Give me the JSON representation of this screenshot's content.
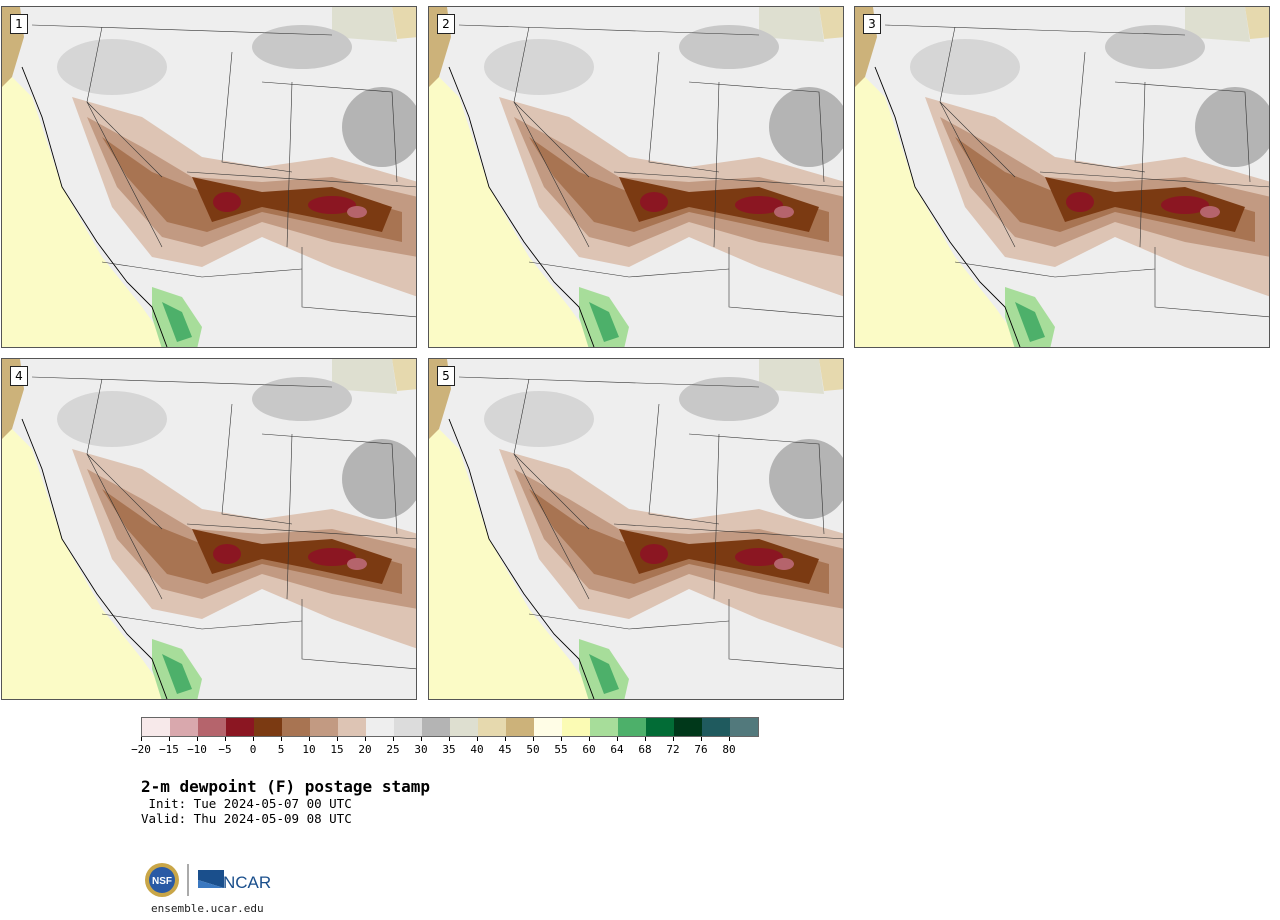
{
  "panels": [
    {
      "label": "1"
    },
    {
      "label": "2"
    },
    {
      "label": "3"
    },
    {
      "label": "4"
    },
    {
      "label": "5"
    }
  ],
  "colorbar": {
    "colors": [
      "#f7e9ea",
      "#d9a8ad",
      "#b5646c",
      "#8b1622",
      "#7b3a12",
      "#a87452",
      "#c29a82",
      "#ddc4b4",
      "#eeeeee",
      "#dcdcdc",
      "#b4b4b4",
      "#dedfd0",
      "#e6d9ae",
      "#ccb27a",
      "#fffde6",
      "#fbfbb4",
      "#a7dd9a",
      "#4db06a",
      "#026c36",
      "#00381a",
      "#1f5a5e",
      "#52797c"
    ],
    "ticks": [
      "−20",
      "−15",
      "−10",
      "−5",
      "0",
      "5",
      "10",
      "15",
      "20",
      "25",
      "30",
      "35",
      "40",
      "45",
      "50",
      "55",
      "60",
      "64",
      "68",
      "72",
      "76",
      "80"
    ]
  },
  "title": "2-m dewpoint (F) postage stamp",
  "init": " Init: Tue 2024-05-07 00 UTC",
  "valid": "Valid: Thu 2024-05-09 08 UTC",
  "logo": {
    "nsf_text": "NSF",
    "ncar_text": "NCAR"
  },
  "site": "ensemble.ucar.edu"
}
